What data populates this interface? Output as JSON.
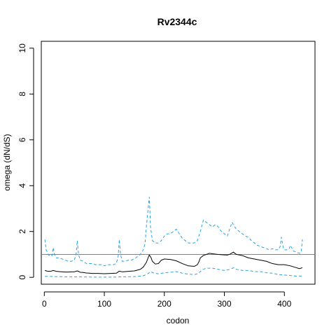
{
  "chart_data": {
    "type": "line",
    "title": "Rv2344c",
    "xlabel": "codon",
    "ylabel": "omega (dN/dS)",
    "xlim": [
      -5,
      451
    ],
    "ylim": [
      -0.3,
      10.3
    ],
    "xticks": [
      0,
      100,
      200,
      300,
      400
    ],
    "yticks": [
      0,
      2,
      4,
      6,
      8,
      10
    ],
    "grid": false,
    "legend": "none",
    "reference_line": {
      "y": 1,
      "color": "#d6587a"
    },
    "series": [
      {
        "role": "upper",
        "color": "#29a3e0",
        "dash": "dashed",
        "x": [
          1,
          3,
          5,
          8,
          10,
          13,
          15,
          17,
          20,
          25,
          30,
          35,
          40,
          45,
          50,
          53,
          55,
          57,
          60,
          65,
          70,
          75,
          80,
          85,
          90,
          95,
          100,
          105,
          110,
          115,
          120,
          123,
          125,
          127,
          130,
          135,
          140,
          145,
          150,
          155,
          160,
          165,
          168,
          170,
          173,
          175,
          177,
          180,
          185,
          190,
          195,
          200,
          205,
          210,
          215,
          220,
          225,
          230,
          235,
          240,
          245,
          250,
          255,
          260,
          265,
          270,
          275,
          280,
          285,
          290,
          295,
          300,
          305,
          310,
          313,
          315,
          320,
          325,
          330,
          335,
          340,
          345,
          350,
          355,
          360,
          365,
          370,
          375,
          380,
          385,
          390,
          393,
          395,
          398,
          400,
          405,
          408,
          410,
          415,
          420,
          425,
          428,
          430
        ],
        "y": [
          1.65,
          1.2,
          1.1,
          0.95,
          1.0,
          0.95,
          1.3,
          1.0,
          0.85,
          0.85,
          0.8,
          0.75,
          0.7,
          0.7,
          0.75,
          1.0,
          1.6,
          1.0,
          0.75,
          0.7,
          0.6,
          0.6,
          0.6,
          0.55,
          0.55,
          0.55,
          0.5,
          0.55,
          0.55,
          0.55,
          0.6,
          0.9,
          1.65,
          1.0,
          0.7,
          0.7,
          0.75,
          0.75,
          0.8,
          0.9,
          1.0,
          1.2,
          1.5,
          2.2,
          3.0,
          3.5,
          2.2,
          1.6,
          1.5,
          1.5,
          1.6,
          1.8,
          1.9,
          1.9,
          2.0,
          2.1,
          1.9,
          1.7,
          1.6,
          1.5,
          1.5,
          1.5,
          1.6,
          2.0,
          2.5,
          2.4,
          2.3,
          2.2,
          2.3,
          2.2,
          2.0,
          1.9,
          1.8,
          2.2,
          2.4,
          2.3,
          2.1,
          2.0,
          1.9,
          1.8,
          1.75,
          1.6,
          1.5,
          1.4,
          1.35,
          1.3,
          1.25,
          1.2,
          1.25,
          1.2,
          1.2,
          1.35,
          1.75,
          1.3,
          1.2,
          1.2,
          1.25,
          1.4,
          1.15,
          1.1,
          1.05,
          1.1,
          1.65
        ]
      },
      {
        "role": "estimate",
        "color": "#000000",
        "dash": "solid",
        "x": [
          1,
          5,
          10,
          15,
          20,
          25,
          30,
          35,
          40,
          45,
          50,
          55,
          60,
          65,
          70,
          75,
          80,
          90,
          100,
          110,
          120,
          125,
          130,
          140,
          150,
          160,
          165,
          170,
          173,
          175,
          178,
          180,
          185,
          190,
          195,
          200,
          210,
          220,
          230,
          240,
          250,
          255,
          258,
          260,
          265,
          270,
          275,
          280,
          290,
          300,
          305,
          310,
          315,
          320,
          330,
          340,
          350,
          360,
          370,
          380,
          390,
          400,
          410,
          420,
          425,
          430
        ],
        "y": [
          0.3,
          0.27,
          0.26,
          0.3,
          0.26,
          0.25,
          0.24,
          0.23,
          0.23,
          0.24,
          0.24,
          0.28,
          0.22,
          0.21,
          0.19,
          0.18,
          0.17,
          0.17,
          0.16,
          0.17,
          0.18,
          0.27,
          0.24,
          0.26,
          0.28,
          0.35,
          0.45,
          0.65,
          0.85,
          0.98,
          0.85,
          0.7,
          0.58,
          0.6,
          0.75,
          0.8,
          0.78,
          0.72,
          0.6,
          0.5,
          0.48,
          0.55,
          0.7,
          0.85,
          0.95,
          1.0,
          1.05,
          1.03,
          1.0,
          0.98,
          0.97,
          1.02,
          1.1,
          1.0,
          0.95,
          0.85,
          0.8,
          0.75,
          0.7,
          0.6,
          0.55,
          0.55,
          0.5,
          0.42,
          0.38,
          0.42
        ]
      },
      {
        "role": "lower",
        "color": "#29a3e0",
        "dash": "dashed",
        "x": [
          1,
          10,
          20,
          30,
          40,
          50,
          60,
          80,
          100,
          120,
          125,
          130,
          150,
          160,
          165,
          170,
          175,
          178,
          180,
          190,
          200,
          210,
          220,
          230,
          240,
          250,
          255,
          260,
          265,
          270,
          280,
          290,
          300,
          310,
          315,
          320,
          330,
          340,
          350,
          360,
          370,
          380,
          390,
          400,
          410,
          420,
          430
        ],
        "y": [
          0.04,
          0.04,
          0.03,
          0.03,
          0.02,
          0.02,
          0.02,
          0.01,
          0.01,
          0.01,
          0.02,
          0.02,
          0.03,
          0.05,
          0.07,
          0.12,
          0.2,
          0.25,
          0.2,
          0.15,
          0.2,
          0.22,
          0.25,
          0.18,
          0.14,
          0.12,
          0.15,
          0.25,
          0.35,
          0.4,
          0.4,
          0.35,
          0.3,
          0.35,
          0.42,
          0.35,
          0.3,
          0.3,
          0.25,
          0.25,
          0.2,
          0.18,
          0.12,
          0.1,
          0.08,
          0.05,
          0.06
        ]
      }
    ]
  }
}
